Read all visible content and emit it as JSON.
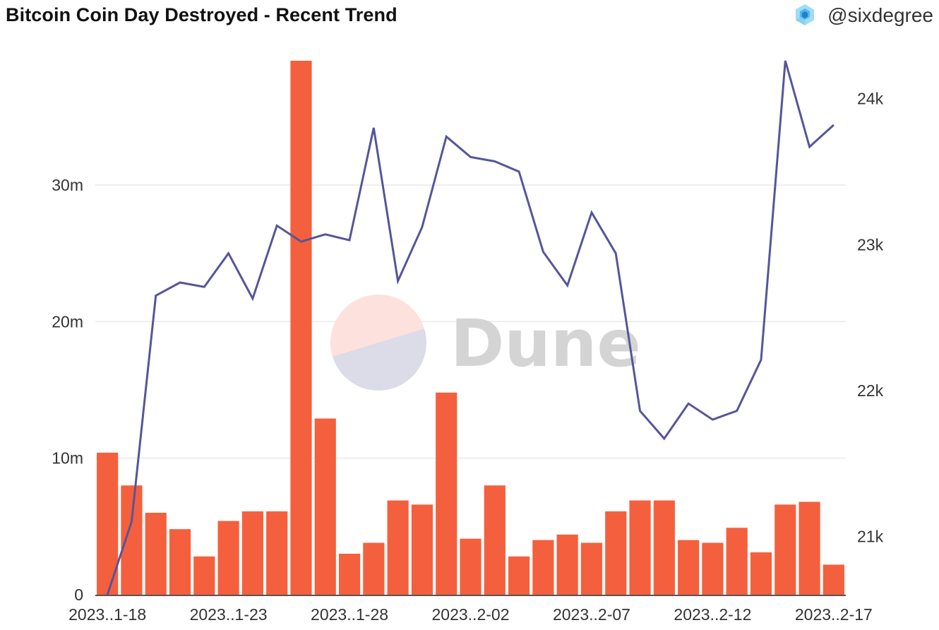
{
  "header": {
    "title": "Bitcoin Coin Day Destroyed - Recent Trend",
    "author": "@sixdegree"
  },
  "watermark": {
    "text": "Dune"
  },
  "colors": {
    "bar": "#f4603d",
    "line": "#56559a",
    "grid": "#e9e9e9",
    "watermark_top": "#fde1dc",
    "watermark_bottom": "#dcdbe8"
  },
  "chart_data": {
    "type": "bar",
    "title": "Bitcoin Coin Day Destroyed - Recent Trend",
    "xlabel": "",
    "ylabel": "",
    "x": [
      "2023-01-18",
      "2023-01-19",
      "2023-01-20",
      "2023-01-21",
      "2023-01-22",
      "2023-01-23",
      "2023-01-24",
      "2023-01-25",
      "2023-01-26",
      "2023-01-27",
      "2023-01-28",
      "2023-01-29",
      "2023-01-30",
      "2023-01-31",
      "2023-02-01",
      "2023-02-02",
      "2023-02-03",
      "2023-02-04",
      "2023-02-05",
      "2023-02-06",
      "2023-02-07",
      "2023-02-08",
      "2023-02-09",
      "2023-02-10",
      "2023-02-11",
      "2023-02-12",
      "2023-02-13",
      "2023-02-14",
      "2023-02-15",
      "2023-02-16",
      "2023-02-17"
    ],
    "x_tick_labels": [
      "2023..1-18",
      "2023..1-23",
      "2023..1-28",
      "2023..2-02",
      "2023..2-07",
      "2023..2-12",
      "2023..2-17"
    ],
    "x_tick_index": [
      0,
      5,
      10,
      15,
      20,
      25,
      30
    ],
    "bar_series": {
      "axis": "left",
      "values": [
        10.4,
        8.0,
        6.0,
        4.8,
        2.8,
        5.4,
        6.1,
        6.1,
        39.1,
        12.9,
        3.0,
        3.8,
        6.9,
        6.6,
        14.8,
        4.1,
        8.0,
        2.8,
        4.0,
        4.4,
        3.8,
        6.1,
        6.9,
        6.9,
        4.0,
        3.8,
        4.9,
        3.1,
        6.6,
        6.8,
        2.2
      ]
    },
    "line_series": {
      "axis": "right",
      "values": [
        20.6,
        21.1,
        22.65,
        22.74,
        22.71,
        22.94,
        22.63,
        23.13,
        23.02,
        23.07,
        23.03,
        23.8,
        22.75,
        23.12,
        23.74,
        23.6,
        23.57,
        23.5,
        22.95,
        22.72,
        23.22,
        22.94,
        21.86,
        21.67,
        21.91,
        21.8,
        21.86,
        22.21,
        24.26,
        23.67,
        23.82
      ]
    },
    "y_left": {
      "ylim": [
        0,
        39.1
      ],
      "ticks": [
        0,
        10,
        20,
        30
      ],
      "tick_labels": [
        "0",
        "10m",
        "20m",
        "30m"
      ],
      "grid": true
    },
    "y_right": {
      "ylim": [
        20.6,
        24.26
      ],
      "ticks": [
        21,
        22,
        23,
        24
      ],
      "tick_labels": [
        "21k",
        "22k",
        "23k",
        "24k"
      ]
    }
  }
}
